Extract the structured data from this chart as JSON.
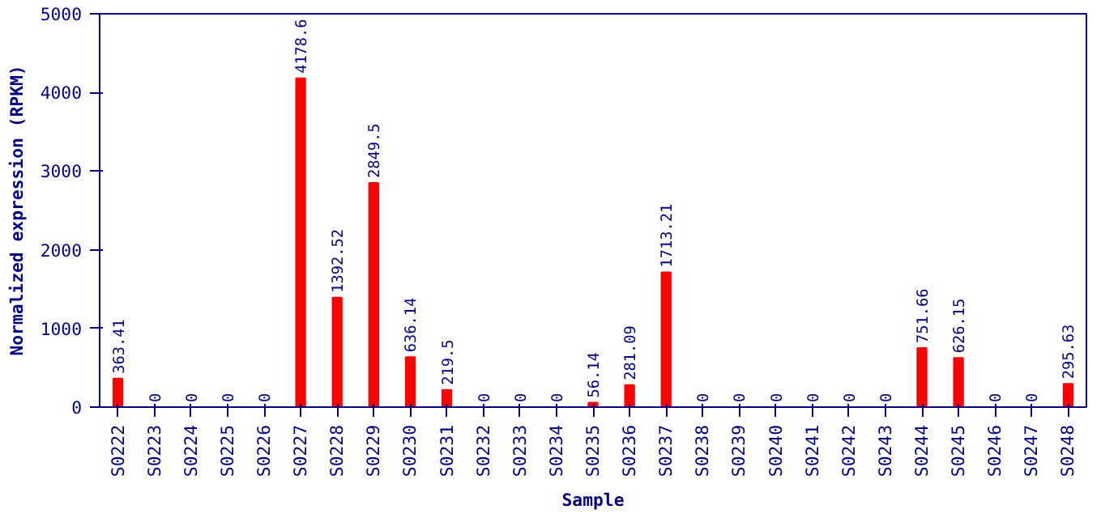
{
  "chart_data": {
    "type": "bar",
    "xlabel": "Sample",
    "ylabel": "Normalized expression (RPKM)",
    "categories": [
      "S0222",
      "S0223",
      "S0224",
      "S0225",
      "S0226",
      "S0227",
      "S0228",
      "S0229",
      "S0230",
      "S0231",
      "S0232",
      "S0233",
      "S0234",
      "S0235",
      "S0236",
      "S0237",
      "S0238",
      "S0239",
      "S0240",
      "S0241",
      "S0242",
      "S0243",
      "S0244",
      "S0245",
      "S0246",
      "S0247",
      "S0248"
    ],
    "values": [
      363.41,
      0,
      0,
      0,
      0,
      4178.6,
      1392.52,
      2849.5,
      636.14,
      219.5,
      0,
      0,
      0,
      56.14,
      281.09,
      1713.21,
      0,
      0,
      0,
      0,
      0,
      0,
      751.66,
      626.15,
      0,
      0,
      295.63
    ],
    "color": "#ff0000",
    "ylim": [
      0,
      5000
    ],
    "yticks": [
      0,
      1000,
      2000,
      3000,
      4000,
      5000
    ],
    "grid": false,
    "data_labels": true
  }
}
